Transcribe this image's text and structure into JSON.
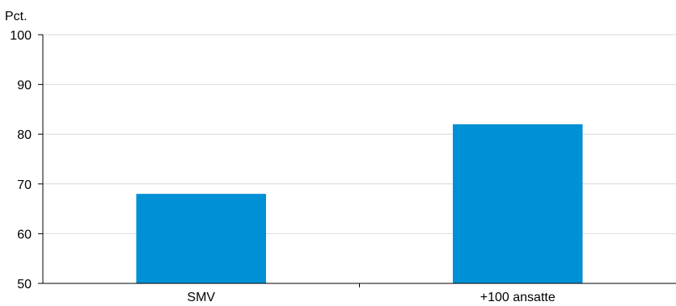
{
  "chart_data": {
    "type": "bar",
    "categories": [
      "SMV",
      "+100 ansatte"
    ],
    "values": [
      68,
      82
    ],
    "ylabel": "Pct.",
    "ylim": [
      50,
      100
    ],
    "yticks": [
      50,
      60,
      70,
      80,
      90,
      100
    ],
    "grid": true,
    "color": "#0090d6"
  }
}
